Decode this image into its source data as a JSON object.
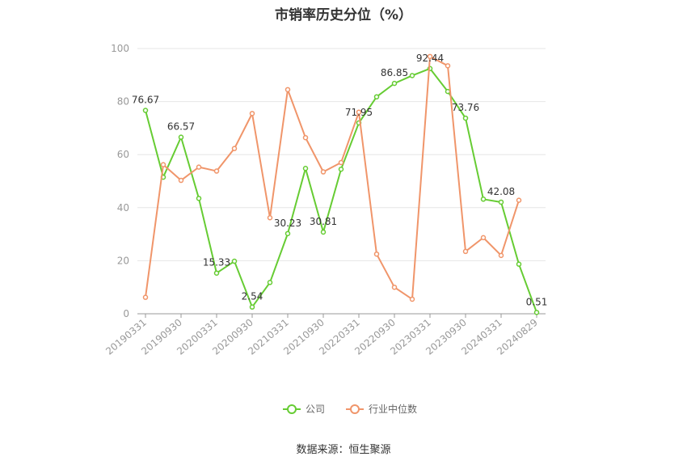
{
  "chart_data": {
    "type": "line",
    "title": "市销率历史分位（%）",
    "source": "数据来源：恒生聚源",
    "ylim": [
      0,
      100
    ],
    "yticks": [
      0,
      20,
      40,
      60,
      80,
      100
    ],
    "x": [
      "20190331",
      "20190630",
      "20190930",
      "20191231",
      "20200331",
      "20200630",
      "20200930",
      "20201231",
      "20210331",
      "20210630",
      "20210930",
      "20211231",
      "20220331",
      "20220630",
      "20220930",
      "20221231",
      "20230331",
      "20230630",
      "20230930",
      "20231231",
      "20240331",
      "20240630",
      "20240829"
    ],
    "x_tick_labels": [
      "20190331",
      "20190930",
      "20200331",
      "20200930",
      "20210331",
      "20210930",
      "20220331",
      "20220930",
      "20230331",
      "20230930",
      "20240331",
      "20240829"
    ],
    "grid": "horizontal",
    "legend_position": "bottom",
    "series": [
      {
        "name": "公司",
        "color": "#66cc33",
        "values": [
          76.67,
          51.5,
          66.57,
          43.5,
          15.33,
          19.8,
          2.54,
          11.8,
          30.23,
          54.8,
          30.81,
          54.5,
          71.95,
          81.8,
          86.85,
          89.8,
          92.44,
          83.8,
          73.76,
          43.2,
          42.08,
          18.7,
          0.51
        ],
        "labels": {
          "0": "76.67",
          "2": "66.57",
          "4": "15.33",
          "6": "2.54",
          "8": "30.23",
          "10": "30.81",
          "12": "71.95",
          "14": "86.85",
          "16": "92.44",
          "18": "73.76",
          "20": "42.08",
          "22": "0.51"
        }
      },
      {
        "name": "行业中位数",
        "color": "#f0956a",
        "values": [
          6.2,
          56.2,
          50.3,
          55.3,
          53.8,
          62.3,
          75.5,
          36.2,
          84.5,
          66.4,
          53.5,
          57.0,
          76.0,
          22.5,
          10.0,
          5.5,
          97.0,
          93.5,
          23.5,
          28.7,
          22.0,
          42.8,
          null
        ]
      }
    ]
  }
}
